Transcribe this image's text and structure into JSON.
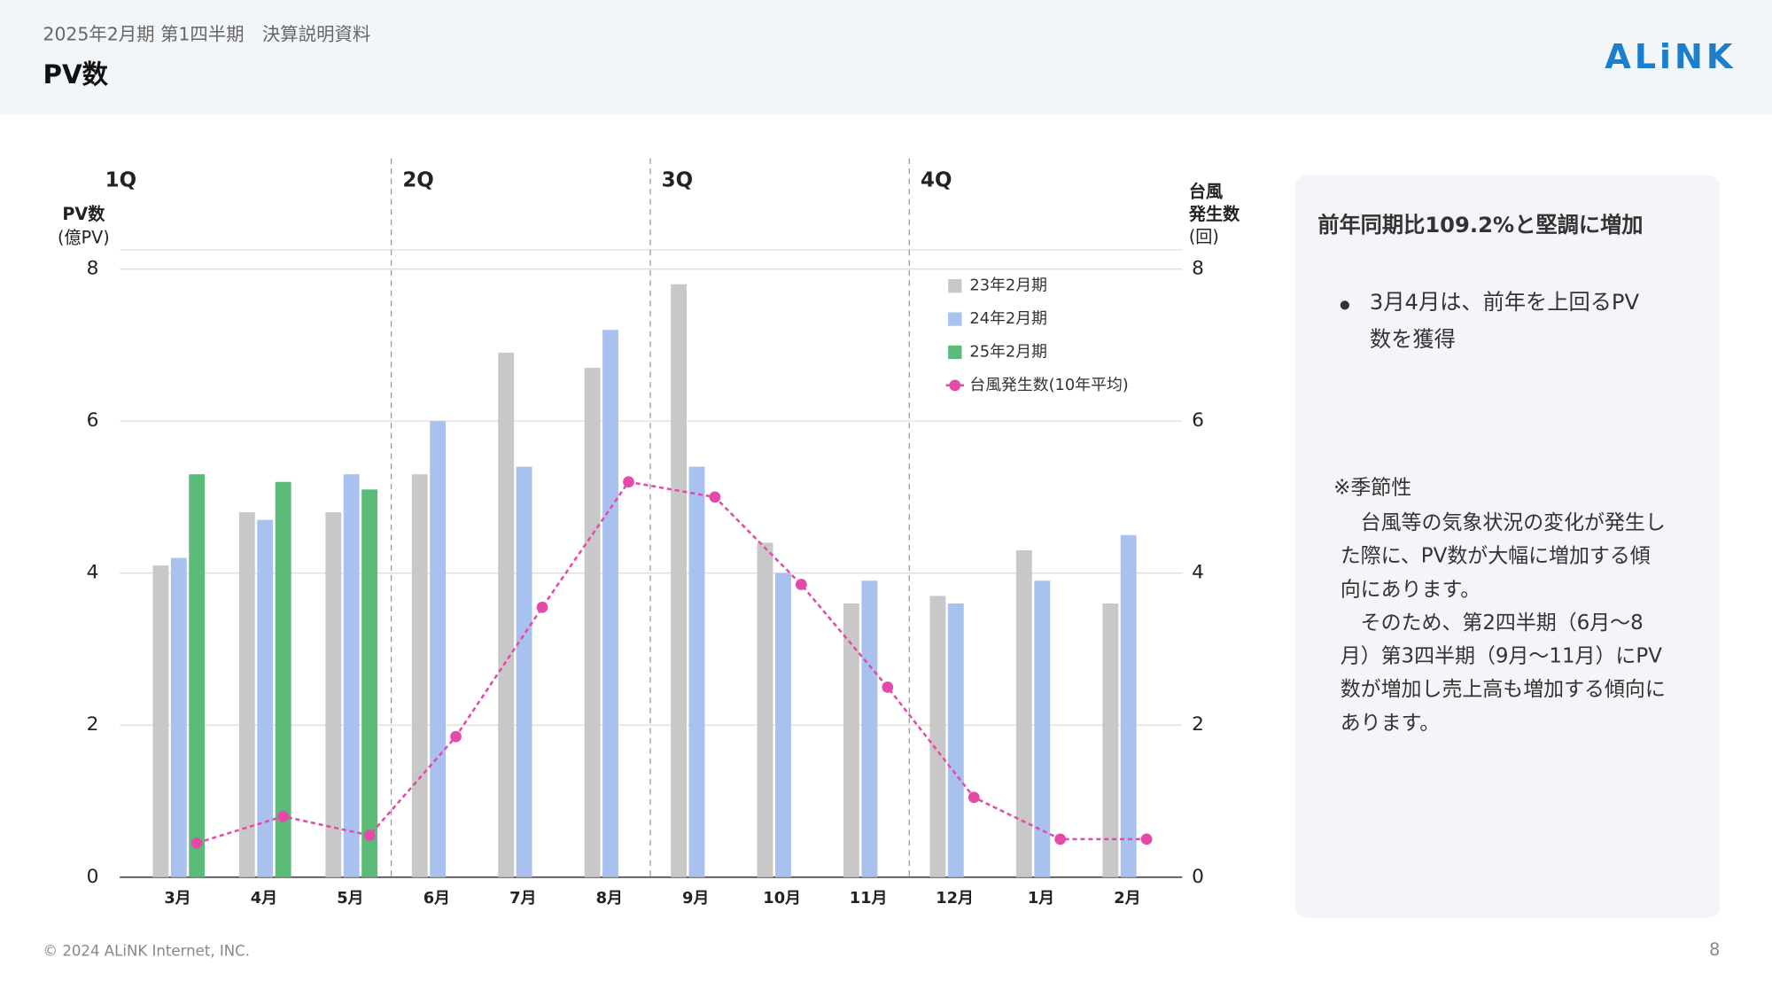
{
  "header": {
    "subtitle": "2025年2月期 第1四半期　決算説明資料",
    "title": "PV数",
    "logo": "ALiNK"
  },
  "chart_data": {
    "type": "bar",
    "quarters": [
      "1Q",
      "2Q",
      "3Q",
      "4Q"
    ],
    "y_axis_label": [
      "PV数",
      "(億PV)"
    ],
    "y2_axis_label": [
      "台風",
      "発生数",
      "(回)"
    ],
    "categories": [
      "3月",
      "4月",
      "5月",
      "6月",
      "7月",
      "8月",
      "9月",
      "10月",
      "11月",
      "12月",
      "1月",
      "2月"
    ],
    "series": [
      {
        "name": "23年2月期",
        "color": "#c8c8c8",
        "values": [
          4.1,
          4.8,
          4.8,
          5.3,
          6.9,
          6.7,
          7.8,
          4.4,
          3.6,
          3.7,
          4.3,
          3.6
        ]
      },
      {
        "name": "24年2月期",
        "color": "#a9c1ef",
        "values": [
          4.2,
          4.7,
          5.3,
          6.0,
          5.4,
          7.2,
          5.4,
          4.0,
          3.9,
          3.6,
          3.9,
          4.5
        ]
      },
      {
        "name": "25年2月期",
        "color": "#5bbb78",
        "values": [
          5.3,
          5.2,
          5.1,
          null,
          null,
          null,
          null,
          null,
          null,
          null,
          null,
          null
        ]
      },
      {
        "name": "台風発生数(10年平均)",
        "color": "#e64aa8",
        "type": "line",
        "axis": "y2",
        "values": [
          0.45,
          0.8,
          0.55,
          1.85,
          3.55,
          5.2,
          5.0,
          3.85,
          2.5,
          1.05,
          0.5,
          0.5
        ]
      }
    ],
    "ylim": [
      0,
      8
    ],
    "yticks": [
      0,
      2,
      4,
      6,
      8
    ],
    "y2lim": [
      0,
      8
    ],
    "y2ticks": [
      0,
      2,
      4,
      6,
      8
    ],
    "grid": true,
    "legend": "upper right"
  },
  "panel": {
    "heading": "前年同期比109.2%と堅調に増加",
    "bullets": [
      [
        "3月4月は、前年を上回るPV",
        "数を獲得"
      ]
    ],
    "note_title": "※季節性",
    "note_lines": [
      "　台風等の気象状況の変化が発生し",
      "た際に、PV数が大幅に増加する傾",
      "向にあります。",
      "　そのため、第2四半期（6月〜8",
      "月）第3四半期（9月〜11月）にPV",
      "数が増加し売上高も増加する傾向に",
      "あります。"
    ]
  },
  "footer": {
    "copyright": "© 2024 ALiNK Internet, INC.",
    "page": "8"
  }
}
